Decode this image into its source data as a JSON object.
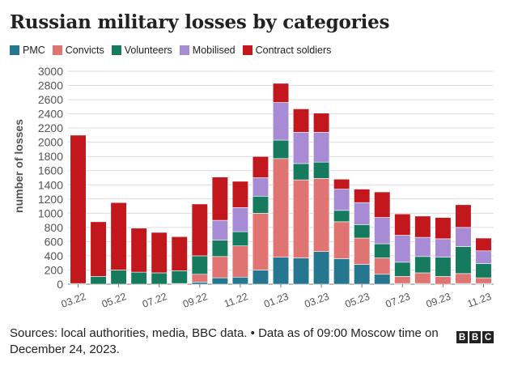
{
  "title": "Russian military losses by categories",
  "colors": {
    "PMC": "#24778f",
    "Convicts": "#e07472",
    "Volunteers": "#167a5e",
    "Mobilised": "#a88bd5",
    "Contract soldiers": "#c2181d"
  },
  "chart_data": {
    "type": "bar",
    "stacked": true,
    "categories": [
      "03.22",
      "04.22",
      "05.22",
      "06.22",
      "07.22",
      "08.22",
      "09.22",
      "10.22",
      "11.22",
      "12.22",
      "01.23",
      "02.23",
      "03.23",
      "04.23",
      "05.23",
      "06.23",
      "07.23",
      "08.23",
      "09.23",
      "10.23",
      "11.23"
    ],
    "tick_labels": [
      "03.22",
      "05.22",
      "07.22",
      "09.22",
      "11.22",
      "01.23",
      "03.23",
      "05.23",
      "07.23",
      "09.23",
      "11.23"
    ],
    "series": [
      {
        "name": "PMC",
        "values": [
          0,
          0,
          0,
          0,
          0,
          0,
          30,
          90,
          100,
          200,
          380,
          370,
          460,
          360,
          280,
          140,
          10,
          10,
          0,
          10,
          10
        ]
      },
      {
        "name": "Convicts",
        "values": [
          0,
          0,
          0,
          0,
          0,
          10,
          110,
          300,
          440,
          800,
          1390,
          1100,
          1030,
          520,
          370,
          230,
          100,
          150,
          110,
          140,
          80
        ]
      },
      {
        "name": "Volunteers",
        "values": [
          10,
          110,
          200,
          170,
          160,
          180,
          260,
          230,
          200,
          240,
          260,
          230,
          230,
          160,
          190,
          200,
          200,
          230,
          270,
          380,
          200
        ]
      },
      {
        "name": "Mobilised",
        "values": [
          0,
          0,
          0,
          0,
          0,
          0,
          0,
          280,
          340,
          260,
          530,
          440,
          420,
          300,
          310,
          370,
          380,
          270,
          260,
          270,
          180
        ]
      },
      {
        "name": "Contract soldiers",
        "values": [
          2090,
          770,
          950,
          620,
          570,
          480,
          730,
          610,
          370,
          300,
          270,
          330,
          270,
          140,
          190,
          360,
          300,
          300,
          300,
          320,
          180
        ]
      }
    ],
    "ylabel": "number of losses",
    "xlabel": "",
    "ylim": [
      0,
      3000
    ],
    "yticks": [
      0,
      200,
      400,
      600,
      800,
      1000,
      1200,
      1400,
      1600,
      1800,
      2000,
      2200,
      2400,
      2600,
      2800,
      3000
    ],
    "grid": true,
    "legend_position": "top-left"
  },
  "footer": {
    "source": "Sources: local authorities, media, BBC data. • Data as of 09:00 Moscow time on December 24, 2023.",
    "logo_letters": [
      "B",
      "B",
      "C"
    ]
  }
}
